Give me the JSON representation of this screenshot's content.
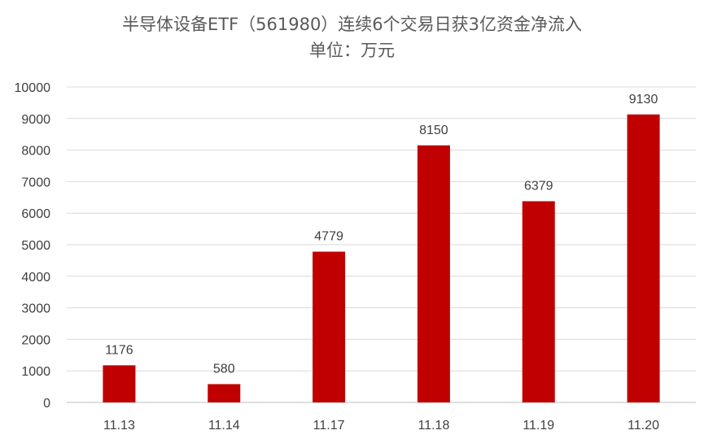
{
  "chart_data": {
    "type": "bar",
    "title": "半导体设备ETF（561980）连续6个交易日获3亿资金净流入",
    "subtitle": "单位：万元",
    "categories": [
      "11.13",
      "11.14",
      "11.17",
      "11.18",
      "11.19",
      "11.20"
    ],
    "values": [
      1176,
      580,
      4779,
      8150,
      6379,
      9130
    ],
    "data_labels": [
      "1176",
      "580",
      "4779",
      "8150",
      "6379",
      "9130"
    ],
    "ylim": [
      0,
      10000
    ],
    "yticks": [
      "0",
      "1000",
      "2000",
      "3000",
      "4000",
      "5000",
      "6000",
      "7000",
      "8000",
      "9000",
      "10000"
    ],
    "grid": true,
    "legend": "none",
    "colors": {
      "bar": "#C00000",
      "grid": "#D9D9D9"
    }
  }
}
